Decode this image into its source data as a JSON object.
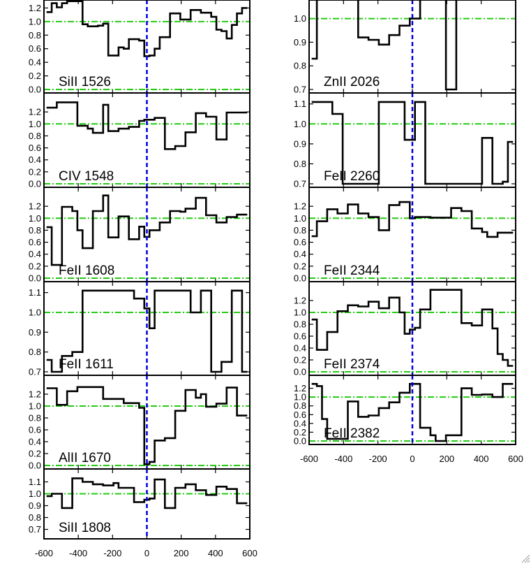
{
  "chart_data": [
    {
      "type": "line",
      "label": "SiII 1526",
      "xlim": [
        -600,
        600
      ],
      "ylim": [
        0,
        1.4
      ],
      "yticks": [
        0.0,
        0.2,
        0.4,
        0.6,
        0.8,
        1.0,
        1.2
      ],
      "ytick_labels": [
        "0.0",
        "0.2",
        "0.4",
        "0.6",
        "0.8",
        "1.0",
        "1.2"
      ],
      "x": [
        -570,
        -540,
        -510,
        -480,
        -450,
        -420,
        -390,
        -360,
        -330,
        -300,
        -270,
        -240,
        -210,
        -180,
        -150,
        -120,
        -90,
        -60,
        -30,
        0,
        30,
        60,
        90,
        120,
        150,
        180,
        210,
        240,
        270,
        300,
        330,
        360,
        390,
        420,
        450,
        480,
        510,
        540,
        570
      ],
      "y": [
        1.14,
        1.27,
        1.21,
        1.27,
        1.3,
        1.3,
        1.3,
        0.96,
        0.93,
        0.93,
        0.94,
        0.97,
        0.5,
        0.5,
        0.62,
        0.6,
        0.74,
        0.74,
        0.72,
        0.49,
        0.5,
        0.6,
        0.77,
        0.77,
        1.12,
        1.12,
        1.03,
        1.03,
        1.17,
        1.17,
        1.13,
        1.13,
        1.07,
        0.88,
        0.86,
        0.75,
        0.95,
        1.12,
        1.2
      ]
    },
    {
      "type": "line",
      "label": "CIV 1548",
      "xlim": [
        -600,
        600
      ],
      "ylim": [
        0,
        1.4
      ],
      "yticks": [
        0.0,
        0.2,
        0.4,
        0.6,
        0.8,
        1.0,
        1.2
      ],
      "ytick_labels": [
        "0.0",
        "0.2",
        "0.4",
        "0.6",
        "0.8",
        "1.0",
        "1.2"
      ],
      "x": [
        -570,
        -540,
        -510,
        -480,
        -450,
        -420,
        -390,
        -360,
        -330,
        -300,
        -270,
        -240,
        -210,
        -180,
        -150,
        -120,
        -90,
        -60,
        -30,
        0,
        30,
        60,
        90,
        120,
        150,
        180,
        210,
        240,
        270,
        300,
        330,
        360,
        390,
        420,
        450,
        480,
        510,
        540,
        570
      ],
      "y": [
        1.27,
        1.27,
        1.36,
        1.36,
        1.36,
        1.36,
        0.97,
        0.97,
        0.92,
        0.85,
        0.85,
        1.32,
        0.88,
        0.88,
        0.92,
        0.92,
        0.95,
        0.95,
        1.05,
        1.07,
        1.07,
        1.1,
        1.1,
        0.58,
        0.58,
        0.63,
        0.63,
        0.86,
        0.86,
        1.18,
        1.18,
        1.12,
        1.12,
        0.74,
        0.74,
        1.19,
        1.19,
        1.19,
        1.19
      ]
    },
    {
      "type": "line",
      "label": "FeII 1608",
      "xlim": [
        -600,
        600
      ],
      "ylim": [
        0,
        1.4
      ],
      "yticks": [
        0.0,
        0.2,
        0.4,
        0.6,
        0.8,
        1.0,
        1.2
      ],
      "ytick_labels": [
        "0.0",
        "0.2",
        "0.4",
        "0.6",
        "0.8",
        "1.0",
        "1.2"
      ],
      "x": [
        -570,
        -540,
        -510,
        -480,
        -450,
        -420,
        -390,
        -360,
        -330,
        -300,
        -270,
        -240,
        -210,
        -180,
        -150,
        -120,
        -90,
        -60,
        -30,
        0,
        30,
        60,
        90,
        120,
        150,
        180,
        210,
        240,
        270,
        300,
        330,
        360,
        390,
        420,
        450,
        480,
        510,
        540,
        570
      ],
      "y": [
        0.85,
        0.22,
        0.22,
        1.19,
        1.19,
        1.12,
        0.8,
        0.5,
        0.5,
        1.12,
        1.12,
        1.38,
        0.68,
        0.68,
        1.03,
        1.03,
        0.65,
        0.65,
        0.86,
        0.69,
        0.8,
        0.8,
        0.93,
        0.93,
        1.12,
        1.12,
        1.11,
        1.16,
        1.16,
        1.34,
        1.34,
        1.05,
        1.05,
        0.93,
        0.93,
        1.02,
        1.02,
        1.06,
        1.06
      ]
    },
    {
      "type": "line",
      "label": "FeII 1611",
      "xlim": [
        -600,
        600
      ],
      "ylim": [
        0.7,
        1.12
      ],
      "yticks": [
        0.7,
        0.8,
        0.9,
        1.0,
        1.1
      ],
      "ytick_labels": [
        "0.7",
        "0.8",
        "0.9",
        "1.0",
        "1.1"
      ],
      "x": [
        -570,
        -540,
        -510,
        -480,
        -450,
        -420,
        -390,
        -360,
        -330,
        -300,
        -270,
        -240,
        -210,
        -180,
        -150,
        -120,
        -90,
        -60,
        -30,
        0,
        30,
        60,
        90,
        120,
        150,
        180,
        210,
        240,
        270,
        300,
        330,
        360,
        390,
        420,
        450,
        480,
        510,
        540,
        570
      ],
      "y": [
        0.76,
        0.7,
        0.7,
        0.78,
        0.78,
        0.8,
        0.8,
        1.11,
        1.11,
        1.11,
        1.11,
        1.11,
        1.11,
        1.11,
        1.11,
        1.11,
        1.11,
        1.07,
        1.07,
        1.02,
        0.92,
        1.11,
        1.11,
        1.11,
        1.11,
        1.11,
        1.11,
        1.11,
        1.0,
        1.0,
        1.11,
        1.11,
        0.7,
        0.7,
        0.75,
        0.75,
        1.11,
        1.11,
        0.7
      ]
    },
    {
      "type": "line",
      "label": "AlII 1670",
      "xlim": [
        -600,
        600
      ],
      "ylim": [
        0,
        1.4
      ],
      "yticks": [
        0.0,
        0.2,
        0.4,
        0.6,
        0.8,
        1.0,
        1.2
      ],
      "ytick_labels": [
        "0.0",
        "0.2",
        "0.4",
        "0.6",
        "0.8",
        "1.0",
        "1.2"
      ],
      "x": [
        -570,
        -540,
        -510,
        -480,
        -450,
        -420,
        -390,
        -360,
        -330,
        -300,
        -270,
        -240,
        -210,
        -180,
        -150,
        -120,
        -90,
        -60,
        -30,
        0,
        30,
        60,
        90,
        120,
        150,
        180,
        210,
        240,
        270,
        300,
        330,
        360,
        390,
        420,
        450,
        480,
        510,
        540,
        570
      ],
      "y": [
        1.3,
        1.3,
        1.02,
        1.02,
        1.25,
        1.25,
        1.32,
        1.32,
        1.32,
        1.32,
        1.32,
        1.12,
        1.12,
        1.12,
        1.12,
        1.05,
        1.05,
        1.05,
        0.97,
        0.02,
        0.06,
        0.42,
        0.42,
        0.46,
        0.46,
        0.92,
        0.92,
        1.27,
        1.27,
        1.14,
        1.2,
        0.99,
        0.99,
        1.04,
        1.04,
        1.31,
        1.31,
        0.84,
        0.84
      ]
    },
    {
      "type": "line",
      "label": "SiII 1808",
      "xlim": [
        -600,
        600
      ],
      "ylim": [
        0.65,
        1.15
      ],
      "yticks": [
        0.7,
        0.8,
        0.9,
        1.0,
        1.1
      ],
      "ytick_labels": [
        "0.7",
        "0.8",
        "0.9",
        "1.0",
        "1.1"
      ],
      "x": [
        -570,
        -540,
        -510,
        -480,
        -450,
        -420,
        -390,
        -360,
        -330,
        -300,
        -270,
        -240,
        -210,
        -180,
        -150,
        -120,
        -90,
        -60,
        -30,
        0,
        30,
        60,
        90,
        120,
        150,
        180,
        210,
        240,
        270,
        300,
        330,
        360,
        390,
        420,
        450,
        480,
        510,
        540,
        570
      ],
      "y": [
        0.98,
        1.0,
        1.0,
        0.88,
        0.88,
        1.13,
        1.13,
        1.1,
        1.1,
        1.08,
        1.08,
        1.07,
        1.07,
        1.09,
        1.05,
        1.05,
        1.05,
        0.93,
        0.93,
        0.95,
        0.96,
        1.12,
        1.12,
        0.88,
        0.88,
        1.05,
        1.05,
        1.08,
        1.08,
        1.03,
        1.03,
        0.99,
        0.99,
        1.06,
        1.06,
        1.04,
        1.04,
        0.92,
        0.92
      ]
    },
    {
      "type": "line",
      "label": "ZnII 2026",
      "xlim": [
        -600,
        600
      ],
      "ylim": [
        0.7,
        1.12
      ],
      "yticks": [
        0.7,
        0.8,
        0.9,
        1.0,
        1.1
      ],
      "ytick_labels": [
        "0.7",
        "0.8",
        "0.9",
        "1.0",
        "1.1"
      ],
      "x": [
        -570,
        -540,
        -510,
        -480,
        -450,
        -420,
        -390,
        -360,
        -330,
        -300,
        -270,
        -240,
        -210,
        -180,
        -150,
        -120,
        -90,
        -60,
        -30,
        0,
        30,
        60,
        90,
        120,
        150,
        180,
        210,
        240,
        270,
        300,
        330,
        360,
        390,
        420,
        450,
        480,
        510,
        540,
        570
      ],
      "y": [
        0.83,
        1.11,
        1.11,
        1.11,
        1.11,
        1.11,
        1.11,
        1.11,
        1.11,
        0.92,
        0.92,
        0.91,
        0.91,
        0.89,
        0.89,
        0.93,
        0.93,
        0.97,
        0.97,
        1.0,
        1.0,
        1.11,
        1.11,
        1.11,
        1.11,
        1.11,
        0.7,
        0.7,
        1.11,
        1.11,
        1.11,
        1.11,
        1.08,
        1.08,
        1.11,
        1.11,
        1.11,
        1.11,
        1.11
      ]
    },
    {
      "type": "line",
      "label": "FeII 2260",
      "xlim": [
        -600,
        600
      ],
      "ylim": [
        0.7,
        1.12
      ],
      "yticks": [
        0.7,
        0.8,
        0.9,
        1.0,
        1.1
      ],
      "ytick_labels": [
        "0.7",
        "0.8",
        "0.9",
        "1.0",
        "1.1"
      ],
      "x": [
        -570,
        -540,
        -510,
        -480,
        -450,
        -420,
        -390,
        -360,
        -330,
        -300,
        -270,
        -240,
        -210,
        -180,
        -150,
        -120,
        -90,
        -60,
        -30,
        0,
        30,
        60,
        90,
        120,
        150,
        180,
        210,
        240,
        270,
        300,
        330,
        360,
        390,
        420,
        450,
        480,
        510,
        540,
        570
      ],
      "y": [
        1.11,
        1.11,
        1.11,
        1.11,
        1.05,
        1.05,
        0.7,
        0.7,
        0.7,
        0.7,
        0.7,
        0.7,
        0.7,
        1.11,
        1.11,
        1.11,
        1.11,
        1.11,
        0.92,
        0.92,
        1.11,
        1.11,
        0.7,
        0.7,
        0.7,
        0.7,
        0.7,
        0.7,
        0.7,
        0.7,
        0.7,
        0.7,
        0.7,
        0.93,
        0.93,
        0.7,
        0.7,
        0.71,
        0.91
      ]
    },
    {
      "type": "line",
      "label": "FeII 2344",
      "xlim": [
        -600,
        600
      ],
      "ylim": [
        0,
        1.4
      ],
      "yticks": [
        0.0,
        0.2,
        0.4,
        0.6,
        0.8,
        1.0,
        1.2
      ],
      "ytick_labels": [
        "0.0",
        "0.2",
        "0.4",
        "0.6",
        "0.8",
        "1.0",
        "1.2"
      ],
      "x": [
        -570,
        -540,
        -510,
        -480,
        -450,
        -420,
        -390,
        -360,
        -330,
        -300,
        -270,
        -240,
        -210,
        -180,
        -150,
        -120,
        -90,
        -60,
        -30,
        0,
        30,
        60,
        90,
        120,
        150,
        180,
        210,
        240,
        270,
        300,
        330,
        360,
        390,
        420,
        450,
        480,
        510,
        540,
        570
      ],
      "y": [
        0.7,
        0.95,
        0.95,
        1.15,
        1.15,
        1.08,
        1.08,
        1.23,
        1.23,
        1.08,
        1.08,
        1.02,
        1.02,
        0.8,
        0.8,
        1.22,
        1.22,
        1.27,
        1.27,
        1.0,
        1.02,
        1.02,
        1.02,
        1.01,
        1.01,
        1.01,
        1.01,
        1.17,
        1.17,
        1.12,
        1.12,
        0.83,
        0.83,
        0.77,
        0.69,
        0.69,
        0.76,
        0.76,
        0.76
      ]
    },
    {
      "type": "line",
      "label": "FeII 2374",
      "xlim": [
        -600,
        600
      ],
      "ylim": [
        0,
        1.4
      ],
      "yticks": [
        0.0,
        0.2,
        0.4,
        0.6,
        0.8,
        1.0,
        1.2
      ],
      "ytick_labels": [
        "0.0",
        "0.2",
        "0.4",
        "0.6",
        "0.8",
        "1.0",
        "1.2"
      ],
      "x": [
        -570,
        -540,
        -510,
        -480,
        -450,
        -420,
        -390,
        -360,
        -330,
        -300,
        -270,
        -240,
        -210,
        -180,
        -150,
        -120,
        -90,
        -60,
        -30,
        0,
        30,
        60,
        90,
        120,
        150,
        180,
        210,
        240,
        270,
        300,
        330,
        360,
        390,
        420,
        450,
        480,
        510,
        540,
        570
      ],
      "y": [
        0.88,
        0.37,
        0.37,
        0.67,
        0.67,
        1.02,
        1.02,
        1.12,
        1.12,
        1.1,
        1.1,
        1.18,
        1.18,
        1.07,
        1.07,
        1.25,
        1.25,
        1.0,
        0.64,
        0.71,
        0.74,
        1.05,
        1.05,
        1.38,
        1.38,
        1.38,
        1.38,
        1.38,
        1.38,
        0.82,
        0.82,
        0.78,
        0.78,
        1.05,
        1.05,
        0.73,
        0.3,
        0.2,
        0.1
      ]
    },
    {
      "type": "line",
      "label": "FeII 2382",
      "xlim": [
        -600,
        600
      ],
      "ylim": [
        0,
        1.4
      ],
      "yticks": [
        0.0,
        0.2,
        0.4,
        0.6,
        0.8,
        1.0,
        1.2
      ],
      "ytick_labels": [
        "0.0",
        "0.2",
        "0.4",
        "0.6",
        "0.8",
        "1.0",
        "1.2"
      ],
      "x": [
        -570,
        -540,
        -510,
        -480,
        -450,
        -420,
        -390,
        -360,
        -330,
        -300,
        -270,
        -240,
        -210,
        -180,
        -150,
        -120,
        -90,
        -60,
        -30,
        0,
        30,
        60,
        90,
        120,
        150,
        180,
        210,
        240,
        270,
        300,
        330,
        360,
        390,
        420,
        450,
        480,
        510,
        540,
        570
      ],
      "y": [
        1.3,
        1.25,
        0.5,
        0.05,
        0.05,
        0.05,
        0.05,
        0.9,
        0.9,
        0.55,
        0.55,
        0.58,
        0.58,
        0.75,
        0.75,
        0.88,
        0.88,
        1.1,
        1.1,
        1.3,
        1.3,
        0.3,
        0.3,
        0.13,
        0.0,
        0.0,
        0.13,
        0.13,
        0.13,
        1.2,
        1.2,
        1.05,
        1.05,
        1.06,
        1.06,
        1.0,
        1.0,
        1.3,
        1.3
      ]
    }
  ],
  "shared_axis": {
    "xticks": [
      -600,
      -400,
      -200,
      0,
      200,
      400,
      600
    ],
    "xtick_labels": [
      "-600",
      "-400",
      "-200",
      "0",
      "200",
      "400",
      "600"
    ],
    "reference_level": 1.0,
    "zero_level": 0.0,
    "zero_velocity": 0
  },
  "colors": {
    "spectrum": "#000000",
    "reference_lines": "#22cc11",
    "zero_velocity_line": "#0000dd"
  }
}
